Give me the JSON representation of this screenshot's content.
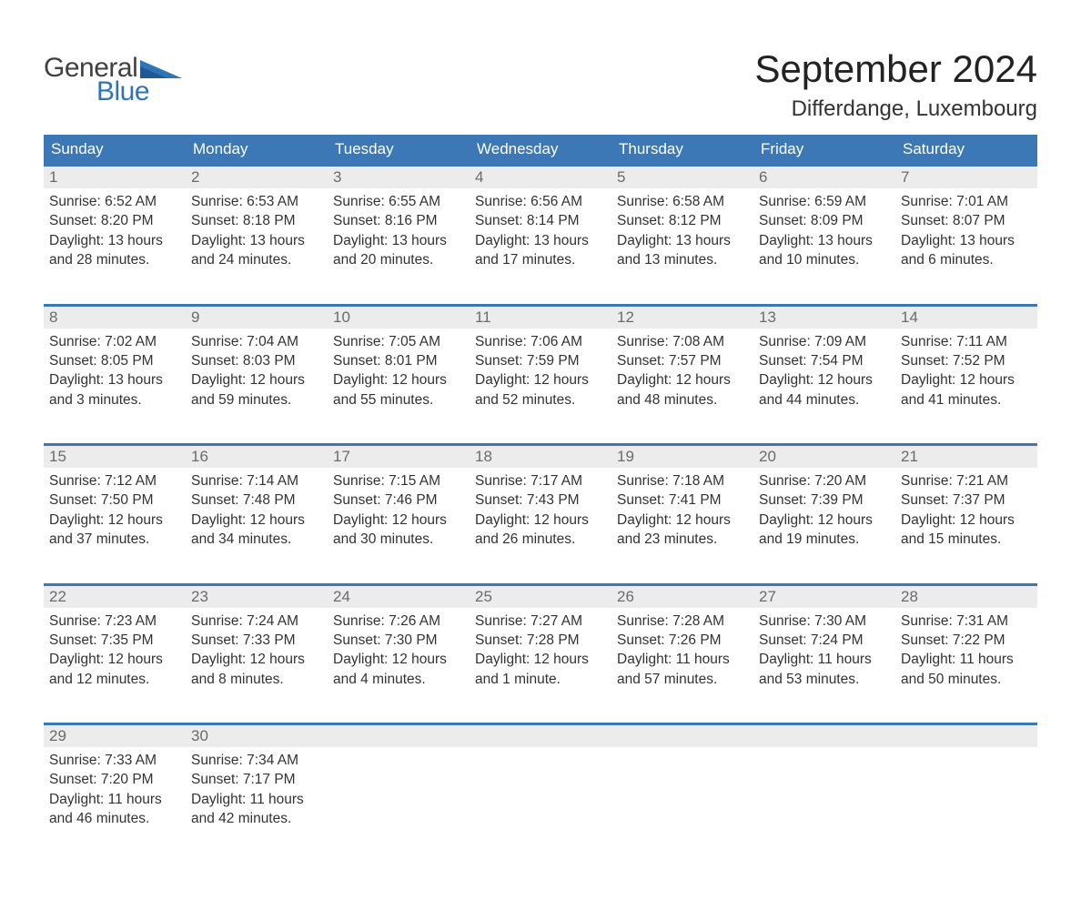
{
  "logo": {
    "word1": "General",
    "word2": "Blue"
  },
  "title": "September 2024",
  "location": "Differdange, Luxembourg",
  "colors": {
    "header_bg": "#3b78b5",
    "header_text": "#ffffff",
    "daynum_bg": "#ececec",
    "daynum_text": "#6b6b6b",
    "body_text": "#333333",
    "logo_gray": "#404040",
    "logo_blue": "#2e75b6",
    "page_bg": "#ffffff",
    "row_top_border": "#3b78b5"
  },
  "weekdays": [
    "Sunday",
    "Monday",
    "Tuesday",
    "Wednesday",
    "Thursday",
    "Friday",
    "Saturday"
  ],
  "weeks": [
    [
      {
        "day": "1",
        "sunrise": "Sunrise: 6:52 AM",
        "sunset": "Sunset: 8:20 PM",
        "day1": "Daylight: 13 hours",
        "day2": "and 28 minutes."
      },
      {
        "day": "2",
        "sunrise": "Sunrise: 6:53 AM",
        "sunset": "Sunset: 8:18 PM",
        "day1": "Daylight: 13 hours",
        "day2": "and 24 minutes."
      },
      {
        "day": "3",
        "sunrise": "Sunrise: 6:55 AM",
        "sunset": "Sunset: 8:16 PM",
        "day1": "Daylight: 13 hours",
        "day2": "and 20 minutes."
      },
      {
        "day": "4",
        "sunrise": "Sunrise: 6:56 AM",
        "sunset": "Sunset: 8:14 PM",
        "day1": "Daylight: 13 hours",
        "day2": "and 17 minutes."
      },
      {
        "day": "5",
        "sunrise": "Sunrise: 6:58 AM",
        "sunset": "Sunset: 8:12 PM",
        "day1": "Daylight: 13 hours",
        "day2": "and 13 minutes."
      },
      {
        "day": "6",
        "sunrise": "Sunrise: 6:59 AM",
        "sunset": "Sunset: 8:09 PM",
        "day1": "Daylight: 13 hours",
        "day2": "and 10 minutes."
      },
      {
        "day": "7",
        "sunrise": "Sunrise: 7:01 AM",
        "sunset": "Sunset: 8:07 PM",
        "day1": "Daylight: 13 hours",
        "day2": "and 6 minutes."
      }
    ],
    [
      {
        "day": "8",
        "sunrise": "Sunrise: 7:02 AM",
        "sunset": "Sunset: 8:05 PM",
        "day1": "Daylight: 13 hours",
        "day2": "and 3 minutes."
      },
      {
        "day": "9",
        "sunrise": "Sunrise: 7:04 AM",
        "sunset": "Sunset: 8:03 PM",
        "day1": "Daylight: 12 hours",
        "day2": "and 59 minutes."
      },
      {
        "day": "10",
        "sunrise": "Sunrise: 7:05 AM",
        "sunset": "Sunset: 8:01 PM",
        "day1": "Daylight: 12 hours",
        "day2": "and 55 minutes."
      },
      {
        "day": "11",
        "sunrise": "Sunrise: 7:06 AM",
        "sunset": "Sunset: 7:59 PM",
        "day1": "Daylight: 12 hours",
        "day2": "and 52 minutes."
      },
      {
        "day": "12",
        "sunrise": "Sunrise: 7:08 AM",
        "sunset": "Sunset: 7:57 PM",
        "day1": "Daylight: 12 hours",
        "day2": "and 48 minutes."
      },
      {
        "day": "13",
        "sunrise": "Sunrise: 7:09 AM",
        "sunset": "Sunset: 7:54 PM",
        "day1": "Daylight: 12 hours",
        "day2": "and 44 minutes."
      },
      {
        "day": "14",
        "sunrise": "Sunrise: 7:11 AM",
        "sunset": "Sunset: 7:52 PM",
        "day1": "Daylight: 12 hours",
        "day2": "and 41 minutes."
      }
    ],
    [
      {
        "day": "15",
        "sunrise": "Sunrise: 7:12 AM",
        "sunset": "Sunset: 7:50 PM",
        "day1": "Daylight: 12 hours",
        "day2": "and 37 minutes."
      },
      {
        "day": "16",
        "sunrise": "Sunrise: 7:14 AM",
        "sunset": "Sunset: 7:48 PM",
        "day1": "Daylight: 12 hours",
        "day2": "and 34 minutes."
      },
      {
        "day": "17",
        "sunrise": "Sunrise: 7:15 AM",
        "sunset": "Sunset: 7:46 PM",
        "day1": "Daylight: 12 hours",
        "day2": "and 30 minutes."
      },
      {
        "day": "18",
        "sunrise": "Sunrise: 7:17 AM",
        "sunset": "Sunset: 7:43 PM",
        "day1": "Daylight: 12 hours",
        "day2": "and 26 minutes."
      },
      {
        "day": "19",
        "sunrise": "Sunrise: 7:18 AM",
        "sunset": "Sunset: 7:41 PM",
        "day1": "Daylight: 12 hours",
        "day2": "and 23 minutes."
      },
      {
        "day": "20",
        "sunrise": "Sunrise: 7:20 AM",
        "sunset": "Sunset: 7:39 PM",
        "day1": "Daylight: 12 hours",
        "day2": "and 19 minutes."
      },
      {
        "day": "21",
        "sunrise": "Sunrise: 7:21 AM",
        "sunset": "Sunset: 7:37 PM",
        "day1": "Daylight: 12 hours",
        "day2": "and 15 minutes."
      }
    ],
    [
      {
        "day": "22",
        "sunrise": "Sunrise: 7:23 AM",
        "sunset": "Sunset: 7:35 PM",
        "day1": "Daylight: 12 hours",
        "day2": "and 12 minutes."
      },
      {
        "day": "23",
        "sunrise": "Sunrise: 7:24 AM",
        "sunset": "Sunset: 7:33 PM",
        "day1": "Daylight: 12 hours",
        "day2": "and 8 minutes."
      },
      {
        "day": "24",
        "sunrise": "Sunrise: 7:26 AM",
        "sunset": "Sunset: 7:30 PM",
        "day1": "Daylight: 12 hours",
        "day2": "and 4 minutes."
      },
      {
        "day": "25",
        "sunrise": "Sunrise: 7:27 AM",
        "sunset": "Sunset: 7:28 PM",
        "day1": "Daylight: 12 hours",
        "day2": "and 1 minute."
      },
      {
        "day": "26",
        "sunrise": "Sunrise: 7:28 AM",
        "sunset": "Sunset: 7:26 PM",
        "day1": "Daylight: 11 hours",
        "day2": "and 57 minutes."
      },
      {
        "day": "27",
        "sunrise": "Sunrise: 7:30 AM",
        "sunset": "Sunset: 7:24 PM",
        "day1": "Daylight: 11 hours",
        "day2": "and 53 minutes."
      },
      {
        "day": "28",
        "sunrise": "Sunrise: 7:31 AM",
        "sunset": "Sunset: 7:22 PM",
        "day1": "Daylight: 11 hours",
        "day2": "and 50 minutes."
      }
    ],
    [
      {
        "day": "29",
        "sunrise": "Sunrise: 7:33 AM",
        "sunset": "Sunset: 7:20 PM",
        "day1": "Daylight: 11 hours",
        "day2": "and 46 minutes."
      },
      {
        "day": "30",
        "sunrise": "Sunrise: 7:34 AM",
        "sunset": "Sunset: 7:17 PM",
        "day1": "Daylight: 11 hours",
        "day2": "and 42 minutes."
      },
      {
        "day": "",
        "sunrise": "",
        "sunset": "",
        "day1": "",
        "day2": ""
      },
      {
        "day": "",
        "sunrise": "",
        "sunset": "",
        "day1": "",
        "day2": ""
      },
      {
        "day": "",
        "sunrise": "",
        "sunset": "",
        "day1": "",
        "day2": ""
      },
      {
        "day": "",
        "sunrise": "",
        "sunset": "",
        "day1": "",
        "day2": ""
      },
      {
        "day": "",
        "sunrise": "",
        "sunset": "",
        "day1": "",
        "day2": ""
      }
    ]
  ]
}
